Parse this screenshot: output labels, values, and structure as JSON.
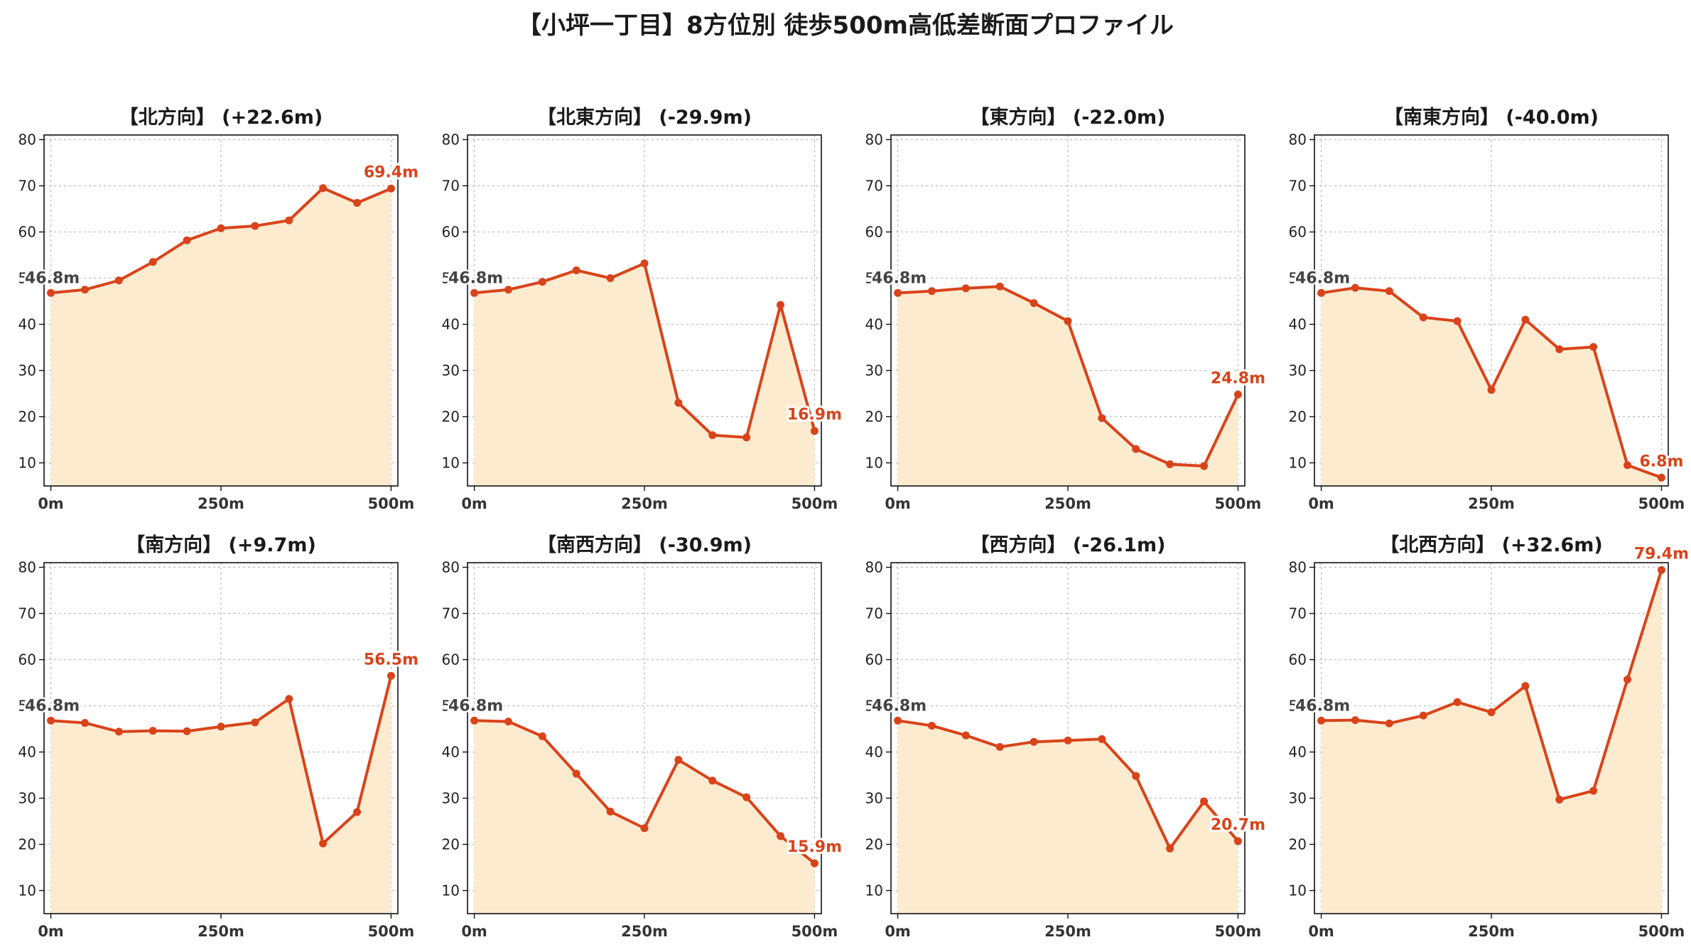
{
  "title": "【小坪一丁目】8方位別 徒歩500m高低差断面プロファイル",
  "colors": {
    "line": "#d9431a",
    "fill": "#fdebd0",
    "start_label": "#444444",
    "end_label": "#d9431a",
    "grid": "#bbbbbb"
  },
  "chart_data": [
    {
      "type": "area",
      "title": "【北方向】 (+22.6m)",
      "x": [
        0,
        50,
        100,
        150,
        200,
        250,
        300,
        350,
        400,
        450,
        500
      ],
      "y": [
        46.8,
        47.5,
        49.5,
        53.5,
        58.2,
        60.8,
        61.3,
        62.5,
        69.5,
        66.3,
        69.4
      ],
      "start_label": "46.8m",
      "end_label": "69.4m",
      "xticks": [
        "0m",
        "250m",
        "500m"
      ],
      "yticks": [
        10,
        20,
        30,
        40,
        50,
        60,
        70,
        80
      ],
      "ylim": [
        5,
        81
      ],
      "xlim": [
        -10,
        510
      ],
      "grid": true
    },
    {
      "type": "area",
      "title": "【北東方向】 (-29.9m)",
      "x": [
        0,
        50,
        100,
        150,
        200,
        250,
        300,
        350,
        400,
        450,
        500
      ],
      "y": [
        46.8,
        47.5,
        49.2,
        51.7,
        50.0,
        53.2,
        23.0,
        16.0,
        15.5,
        44.2,
        16.9
      ],
      "start_label": "46.8m",
      "end_label": "16.9m",
      "xticks": [
        "0m",
        "250m",
        "500m"
      ],
      "yticks": [
        10,
        20,
        30,
        40,
        50,
        60,
        70,
        80
      ],
      "ylim": [
        5,
        81
      ],
      "xlim": [
        -10,
        510
      ],
      "grid": true
    },
    {
      "type": "area",
      "title": "【東方向】 (-22.0m)",
      "x": [
        0,
        50,
        100,
        150,
        200,
        250,
        300,
        350,
        400,
        450,
        500
      ],
      "y": [
        46.8,
        47.2,
        47.8,
        48.2,
        44.6,
        40.7,
        19.7,
        13.0,
        9.7,
        9.3,
        24.8
      ],
      "start_label": "46.8m",
      "end_label": "24.8m",
      "xticks": [
        "0m",
        "250m",
        "500m"
      ],
      "yticks": [
        10,
        20,
        30,
        40,
        50,
        60,
        70,
        80
      ],
      "ylim": [
        5,
        81
      ],
      "xlim": [
        -10,
        510
      ],
      "grid": true
    },
    {
      "type": "area",
      "title": "【南東方向】 (-40.0m)",
      "x": [
        0,
        50,
        100,
        150,
        200,
        250,
        300,
        350,
        400,
        450,
        500
      ],
      "y": [
        46.8,
        47.9,
        47.2,
        41.5,
        40.7,
        25.8,
        41.0,
        34.6,
        35.1,
        9.5,
        6.8
      ],
      "start_label": "46.8m",
      "end_label": "6.8m",
      "xticks": [
        "0m",
        "250m",
        "500m"
      ],
      "yticks": [
        10,
        20,
        30,
        40,
        50,
        60,
        70,
        80
      ],
      "ylim": [
        5,
        81
      ],
      "xlim": [
        -10,
        510
      ],
      "grid": true
    },
    {
      "type": "area",
      "title": "【南方向】 (+9.7m)",
      "x": [
        0,
        50,
        100,
        150,
        200,
        250,
        300,
        350,
        400,
        450,
        500
      ],
      "y": [
        46.8,
        46.3,
        44.4,
        44.6,
        44.5,
        45.5,
        46.4,
        51.5,
        20.2,
        27.0,
        56.5
      ],
      "start_label": "46.8m",
      "end_label": "56.5m",
      "xticks": [
        "0m",
        "250m",
        "500m"
      ],
      "yticks": [
        10,
        20,
        30,
        40,
        50,
        60,
        70,
        80
      ],
      "ylim": [
        5,
        81
      ],
      "xlim": [
        -10,
        510
      ],
      "grid": true
    },
    {
      "type": "area",
      "title": "【南西方向】 (-30.9m)",
      "x": [
        0,
        50,
        100,
        150,
        200,
        250,
        300,
        350,
        400,
        450,
        500
      ],
      "y": [
        46.8,
        46.6,
        43.4,
        35.3,
        27.1,
        23.5,
        38.3,
        33.8,
        30.2,
        21.8,
        15.9
      ],
      "start_label": "46.8m",
      "end_label": "15.9m",
      "xticks": [
        "0m",
        "250m",
        "500m"
      ],
      "yticks": [
        10,
        20,
        30,
        40,
        50,
        60,
        70,
        80
      ],
      "ylim": [
        5,
        81
      ],
      "xlim": [
        -10,
        510
      ],
      "grid": true
    },
    {
      "type": "area",
      "title": "【西方向】 (-26.1m)",
      "x": [
        0,
        50,
        100,
        150,
        200,
        250,
        300,
        350,
        400,
        450,
        500
      ],
      "y": [
        46.8,
        45.7,
        43.6,
        41.1,
        42.2,
        42.5,
        42.8,
        34.8,
        19.1,
        29.3,
        20.7
      ],
      "start_label": "46.8m",
      "end_label": "20.7m",
      "xticks": [
        "0m",
        "250m",
        "500m"
      ],
      "yticks": [
        10,
        20,
        30,
        40,
        50,
        60,
        70,
        80
      ],
      "ylim": [
        5,
        81
      ],
      "xlim": [
        -10,
        510
      ],
      "grid": true
    },
    {
      "type": "area",
      "title": "【北西方向】 (+32.6m)",
      "x": [
        0,
        50,
        100,
        150,
        200,
        250,
        300,
        350,
        400,
        450,
        500
      ],
      "y": [
        46.8,
        46.9,
        46.2,
        47.9,
        50.8,
        48.6,
        54.3,
        29.7,
        31.6,
        55.7,
        79.4
      ],
      "start_label": "46.8m",
      "end_label": "79.4m",
      "xticks": [
        "0m",
        "250m",
        "500m"
      ],
      "yticks": [
        10,
        20,
        30,
        40,
        50,
        60,
        70,
        80
      ],
      "ylim": [
        5,
        81
      ],
      "xlim": [
        -10,
        510
      ],
      "grid": true
    }
  ]
}
